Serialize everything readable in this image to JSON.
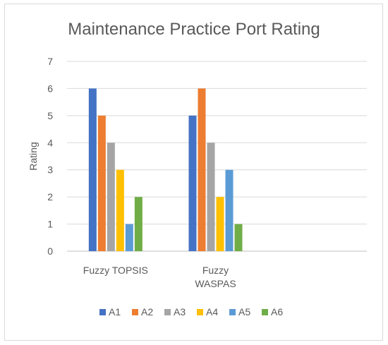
{
  "chart_data": {
    "type": "bar",
    "title": "Maintenance Practice Port Rating",
    "xlabel": "",
    "ylabel": "Rating",
    "ylim": [
      0,
      7
    ],
    "yticks": [
      0,
      1,
      2,
      3,
      4,
      5,
      6,
      7
    ],
    "categories": [
      [
        "Fuzzy TOPSIS"
      ],
      [
        "Fuzzy",
        "WASPAS"
      ],
      [
        ""
      ]
    ],
    "series": [
      {
        "name": "A1",
        "color": "#4472C4",
        "values": [
          6,
          5,
          null
        ]
      },
      {
        "name": "A2",
        "color": "#ED7D31",
        "values": [
          5,
          6,
          null
        ]
      },
      {
        "name": "A3",
        "color": "#A5A5A5",
        "values": [
          4,
          4,
          null
        ]
      },
      {
        "name": "A4",
        "color": "#FFC000",
        "values": [
          3,
          2,
          null
        ]
      },
      {
        "name": "A5",
        "color": "#5B9BD5",
        "values": [
          1,
          3,
          null
        ]
      },
      {
        "name": "A6",
        "color": "#70AD47",
        "values": [
          2,
          1,
          null
        ]
      }
    ],
    "grid": true,
    "legend": "bottom"
  }
}
